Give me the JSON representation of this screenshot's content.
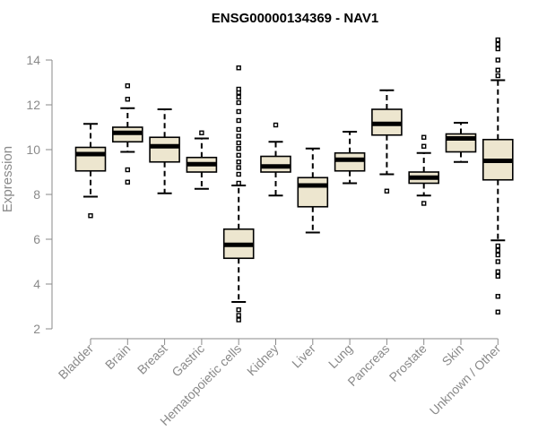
{
  "chart_data": {
    "type": "boxplot",
    "title": "ENSG00000134369 - NAV1",
    "xlabel": "",
    "ylabel": "Expression",
    "ylim": [
      2,
      14.8
    ],
    "yticks": [
      2,
      4,
      6,
      8,
      10,
      12,
      14
    ],
    "grid": false,
    "box_fill": "#ede6cf",
    "categories": [
      "Bladder",
      "Brain",
      "Breast",
      "Gastric",
      "Hematopoietic cells",
      "Kidney",
      "Liver",
      "Lung",
      "Pancreas",
      "Prostate",
      "Skin",
      "Unknown / Other"
    ],
    "boxes": [
      {
        "category": "Bladder",
        "lower_whisker": 7.9,
        "q1": 9.05,
        "median": 9.8,
        "q3": 10.1,
        "upper_whisker": 11.15,
        "outliers": [
          7.05
        ]
      },
      {
        "category": "Brain",
        "lower_whisker": 9.9,
        "q1": 10.35,
        "median": 10.75,
        "q3": 11.0,
        "upper_whisker": 11.85,
        "outliers": [
          8.55,
          9.1,
          12.25,
          12.85
        ]
      },
      {
        "category": "Breast",
        "lower_whisker": 8.05,
        "q1": 9.45,
        "median": 10.15,
        "q3": 10.55,
        "upper_whisker": 11.8,
        "outliers": []
      },
      {
        "category": "Gastric",
        "lower_whisker": 8.25,
        "q1": 9.0,
        "median": 9.35,
        "q3": 9.65,
        "upper_whisker": 10.5,
        "outliers": [
          10.75
        ]
      },
      {
        "category": "Hematopoietic cells",
        "lower_whisker": 3.2,
        "q1": 5.15,
        "median": 5.75,
        "q3": 6.45,
        "upper_whisker": 8.4,
        "outliers": [
          2.4,
          2.6,
          2.85,
          8.5,
          8.9,
          9.2,
          9.45,
          9.75,
          10.05,
          10.3,
          10.6,
          10.9,
          11.3,
          11.7,
          12.1,
          12.35,
          12.55,
          12.7,
          13.65
        ]
      },
      {
        "category": "Kidney",
        "lower_whisker": 7.95,
        "q1": 9.0,
        "median": 9.25,
        "q3": 9.7,
        "upper_whisker": 10.35,
        "outliers": [
          11.1
        ]
      },
      {
        "category": "Liver",
        "lower_whisker": 6.3,
        "q1": 7.45,
        "median": 8.4,
        "q3": 8.75,
        "upper_whisker": 10.05,
        "outliers": []
      },
      {
        "category": "Lung",
        "lower_whisker": 8.5,
        "q1": 9.05,
        "median": 9.55,
        "q3": 9.85,
        "upper_whisker": 10.8,
        "outliers": []
      },
      {
        "category": "Pancreas",
        "lower_whisker": 8.9,
        "q1": 10.65,
        "median": 11.15,
        "q3": 11.8,
        "upper_whisker": 12.65,
        "outliers": [
          8.15
        ]
      },
      {
        "category": "Prostate",
        "lower_whisker": 7.95,
        "q1": 8.5,
        "median": 8.75,
        "q3": 9.0,
        "upper_whisker": 9.85,
        "outliers": [
          7.6,
          10.15,
          10.55
        ]
      },
      {
        "category": "Skin",
        "lower_whisker": 9.45,
        "q1": 9.9,
        "median": 10.5,
        "q3": 10.7,
        "upper_whisker": 11.2,
        "outliers": []
      },
      {
        "category": "Unknown / Other",
        "lower_whisker": 5.95,
        "q1": 8.65,
        "median": 9.5,
        "q3": 10.45,
        "upper_whisker": 13.1,
        "outliers": [
          2.75,
          3.45,
          4.35,
          4.55,
          5.0,
          5.3,
          5.5,
          5.7,
          13.3,
          13.55,
          14.0,
          14.5,
          14.7,
          14.9
        ]
      }
    ]
  }
}
